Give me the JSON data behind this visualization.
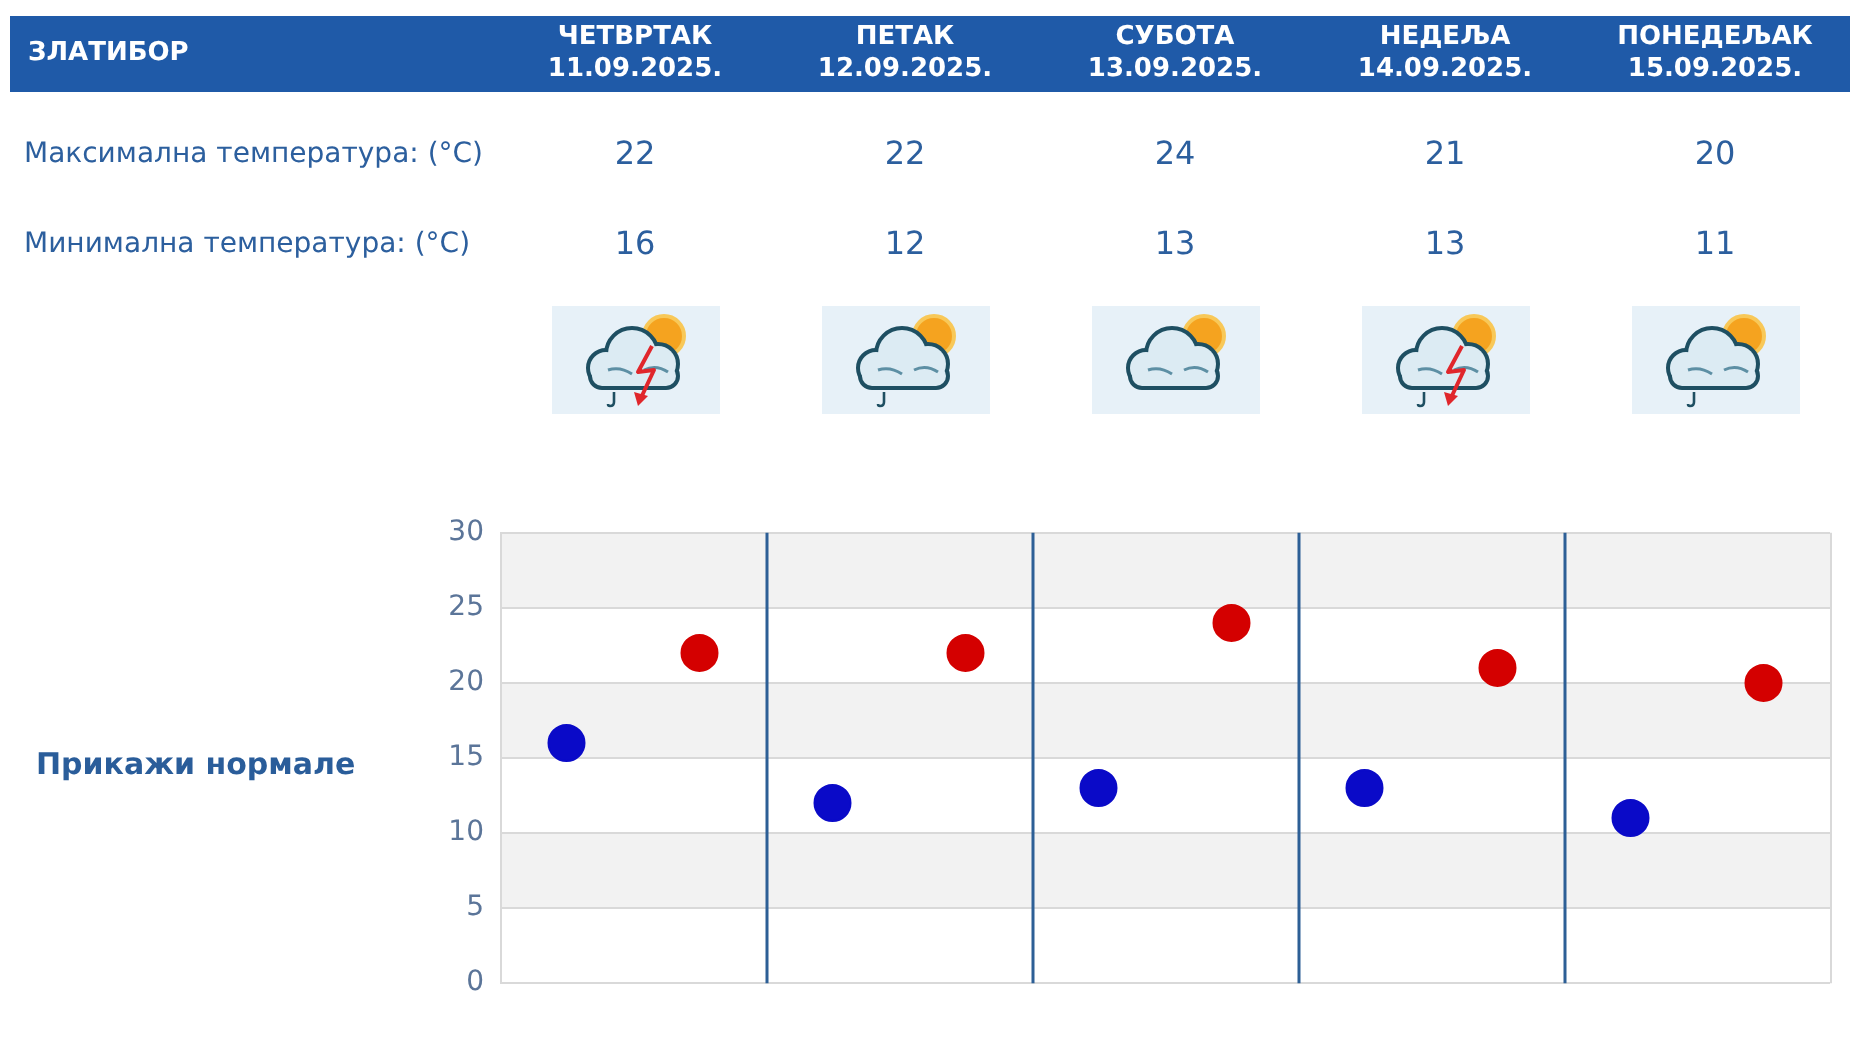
{
  "chart_data": {
    "type": "scatter",
    "title": "ЗЛАТИБОР",
    "categories": [
      null,
      null,
      null,
      null,
      null
    ],
    "series": [
      {
        "color": "#d40000",
        "values": [
          22,
          22,
          24,
          21,
          20
        ]
      },
      {
        "color": "#0a0ac8",
        "values": [
          16,
          12,
          13,
          13,
          11
        ]
      }
    ],
    "ylim": [
      0,
      30
    ],
    "yticks": [
      0,
      5,
      10,
      15,
      20,
      25,
      30
    ],
    "grid": true,
    "marker": "circle",
    "data_labels": true,
    "annotations": [
      "ЧЕТВРТАК 11.09.2025.",
      "ПЕТАК 12.09.2025.",
      "СУБОТА 13.09.2025.",
      "НЕДЕЉА 14.09.2025.",
      "ПОНЕДЕЉАК 15.09.2025.",
      "Максимална температура: (°C)",
      "Минимална температура: (°C)",
      "Прикажи нормале"
    ]
  }
}
